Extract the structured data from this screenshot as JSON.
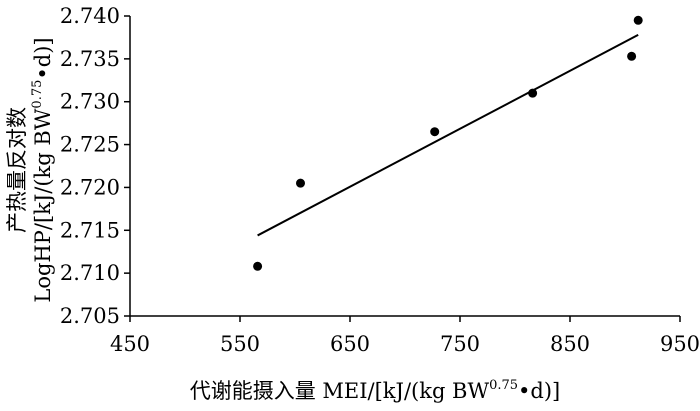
{
  "chart_data": {
    "type": "scatter",
    "xlabel_main": "代谢能摄入量 MEI/[kJ/(kg BW",
    "xlabel_sup": "0.75",
    "xlabel_end": "•d)]",
    "ylabel_line1": "产热量反对数",
    "ylabel_line2_main": "LogHP/[kJ/(kg BW",
    "ylabel_line2_sup": "0.75",
    "ylabel_line2_end": "•d)]",
    "xlim": [
      450,
      950
    ],
    "ylim": [
      2.705,
      2.74
    ],
    "x_ticks": [
      "450",
      "550",
      "650",
      "750",
      "850",
      "950"
    ],
    "y_ticks": [
      "2.705",
      "2.710",
      "2.715",
      "2.720",
      "2.725",
      "2.730",
      "2.735",
      "2.740"
    ],
    "points": [
      {
        "x": 566,
        "y": 2.7108
      },
      {
        "x": 605,
        "y": 2.7205
      },
      {
        "x": 727,
        "y": 2.7265
      },
      {
        "x": 816,
        "y": 2.731
      },
      {
        "x": 906,
        "y": 2.7353
      },
      {
        "x": 912,
        "y": 2.7395
      }
    ],
    "trendline": {
      "x": [
        566,
        912
      ],
      "y": [
        2.7144,
        2.7378
      ]
    },
    "grid": false,
    "colors": {
      "marker": "#000000",
      "line": "#000000",
      "axis": "#000000"
    }
  }
}
